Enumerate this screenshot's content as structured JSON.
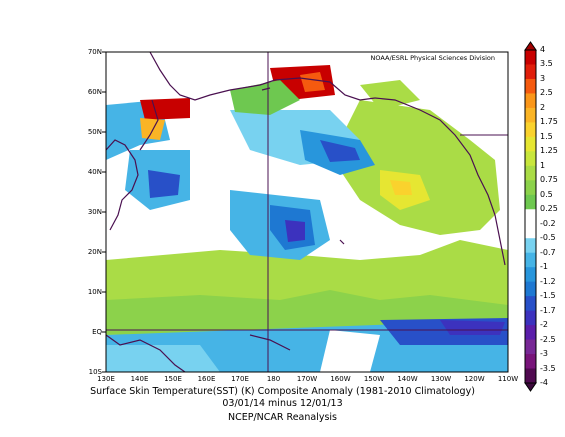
{
  "map": {
    "credit": "NOAA/ESRL Physical Sciences Division",
    "y_ticks": [
      "70N",
      "60N",
      "50N",
      "40N",
      "30N",
      "20N",
      "10N",
      "EQ",
      "10S"
    ],
    "x_ticks": [
      "130E",
      "140E",
      "150E",
      "160E",
      "170E",
      "180",
      "170W",
      "160W",
      "150W",
      "140W",
      "130W",
      "120W",
      "110W"
    ]
  },
  "colorbar": {
    "labels": [
      "4",
      "3.5",
      "3",
      "2.5",
      "2",
      "1.75",
      "1.5",
      "1.25",
      "1",
      "0.75",
      "0.5",
      "0.25",
      "-0.2",
      "-0.5",
      "-0.7",
      "-1",
      "-1.2",
      "-1.5",
      "-1.7",
      "-2",
      "-2.5",
      "-3",
      "-3.5",
      "-4"
    ],
    "colors": [
      "#c80000",
      "#e01e0a",
      "#f55a0f",
      "#fa9619",
      "#fab425",
      "#fad22d",
      "#e6e632",
      "#c8e63c",
      "#aadc46",
      "#8cd24b",
      "#6ec850",
      "#ffffff",
      "#ffffff",
      "#78d2f0",
      "#46b4e6",
      "#2896dc",
      "#1e78d2",
      "#2850c8",
      "#3c32be",
      "#5a1eaa",
      "#782896",
      "#78147a",
      "#500a50"
    ]
  },
  "caption": {
    "line1": "Surface Skin Temperature(SST) (K) Composite Anomaly (1981-2010 Climatology)",
    "line2": "03/01/14 minus 12/01/13",
    "line3": "NCEP/NCAR Reanalysis"
  }
}
